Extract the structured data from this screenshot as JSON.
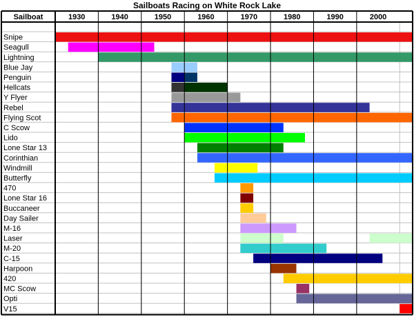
{
  "chart_data": {
    "type": "gantt",
    "title": "Sailboats Racing on White Rock Lake",
    "row_header": "Sailboat",
    "decades": [
      "1930",
      "1940",
      "1950",
      "1960",
      "1970",
      "1980",
      "1990",
      "2000"
    ],
    "x_range": [
      1925,
      2008
    ],
    "rows": [
      {
        "name": "Snipe",
        "segments": [
          {
            "start": 1925,
            "end": 2008,
            "color": "#ee1111"
          }
        ]
      },
      {
        "name": "Seagull",
        "segments": [
          {
            "start": 1928,
            "end": 1948,
            "color": "#ff00ff"
          }
        ]
      },
      {
        "name": "Lightning",
        "segments": [
          {
            "start": 1935,
            "end": 2008,
            "color": "#339966"
          }
        ]
      },
      {
        "name": "Blue Jay",
        "segments": [
          {
            "start": 1952,
            "end": 1958,
            "color": "#99ccff"
          }
        ]
      },
      {
        "name": "Penguin",
        "segments": [
          {
            "start": 1952,
            "end": 1955,
            "color": "#000080"
          },
          {
            "start": 1955,
            "end": 1958,
            "color": "#003366"
          }
        ]
      },
      {
        "name": "Hellcats",
        "segments": [
          {
            "start": 1952,
            "end": 1955,
            "color": "#333333"
          },
          {
            "start": 1955,
            "end": 1965,
            "color": "#003300"
          }
        ]
      },
      {
        "name": "Y Flyer",
        "segments": [
          {
            "start": 1952,
            "end": 1968,
            "color": "#999999"
          }
        ]
      },
      {
        "name": "Rebel",
        "segments": [
          {
            "start": 1952,
            "end": 1998,
            "color": "#333399"
          }
        ]
      },
      {
        "name": "Flying Scot",
        "segments": [
          {
            "start": 1952,
            "end": 2008,
            "color": "#ff6600"
          }
        ]
      },
      {
        "name": "C Scow",
        "segments": [
          {
            "start": 1955,
            "end": 1978,
            "color": "#0033ff"
          }
        ]
      },
      {
        "name": "Lido",
        "segments": [
          {
            "start": 1955,
            "end": 1983,
            "color": "#00ff00"
          }
        ]
      },
      {
        "name": "Lone Star 13",
        "segments": [
          {
            "start": 1958,
            "end": 1978,
            "color": "#008000"
          }
        ]
      },
      {
        "name": "Corinthian",
        "segments": [
          {
            "start": 1958,
            "end": 2008,
            "color": "#3366ff"
          }
        ]
      },
      {
        "name": "Windmill",
        "segments": [
          {
            "start": 1962,
            "end": 1972,
            "color": "#ffff00"
          }
        ]
      },
      {
        "name": "Butterfly",
        "segments": [
          {
            "start": 1962,
            "end": 2008,
            "color": "#00ccff"
          }
        ]
      },
      {
        "name": "470",
        "segments": [
          {
            "start": 1968,
            "end": 1971,
            "color": "#ff9900"
          }
        ]
      },
      {
        "name": "Lone Star 16",
        "segments": [
          {
            "start": 1968,
            "end": 1971,
            "color": "#800000"
          }
        ]
      },
      {
        "name": "Buccaneer",
        "segments": [
          {
            "start": 1968,
            "end": 1971,
            "color": "#ffcc00"
          }
        ]
      },
      {
        "name": "Day Sailer",
        "segments": [
          {
            "start": 1968,
            "end": 1974,
            "color": "#ffcc99"
          }
        ]
      },
      {
        "name": "M-16",
        "segments": [
          {
            "start": 1968,
            "end": 1981,
            "color": "#cc99ff"
          }
        ]
      },
      {
        "name": "Laser",
        "segments": [
          {
            "start": 1968,
            "end": 1978,
            "color": "#ccffcc"
          },
          {
            "start": 1998,
            "end": 2008,
            "color": "#ccffcc"
          }
        ]
      },
      {
        "name": "M-20",
        "segments": [
          {
            "start": 1968,
            "end": 1988,
            "color": "#33cccc"
          }
        ]
      },
      {
        "name": "C-15",
        "segments": [
          {
            "start": 1971,
            "end": 2001,
            "color": "#000080"
          }
        ]
      },
      {
        "name": "Harpoon",
        "segments": [
          {
            "start": 1975,
            "end": 1981,
            "color": "#993300"
          }
        ]
      },
      {
        "name": "420",
        "segments": [
          {
            "start": 1978,
            "end": 2008,
            "color": "#ffcc00"
          }
        ]
      },
      {
        "name": "MC Scow",
        "segments": [
          {
            "start": 1981,
            "end": 1984,
            "color": "#993366"
          }
        ]
      },
      {
        "name": "Opti",
        "segments": [
          {
            "start": 1981,
            "end": 2008,
            "color": "#666699"
          }
        ]
      },
      {
        "name": "V15",
        "segments": [
          {
            "start": 2005,
            "end": 2008,
            "color": "#ff0000"
          }
        ]
      }
    ]
  }
}
